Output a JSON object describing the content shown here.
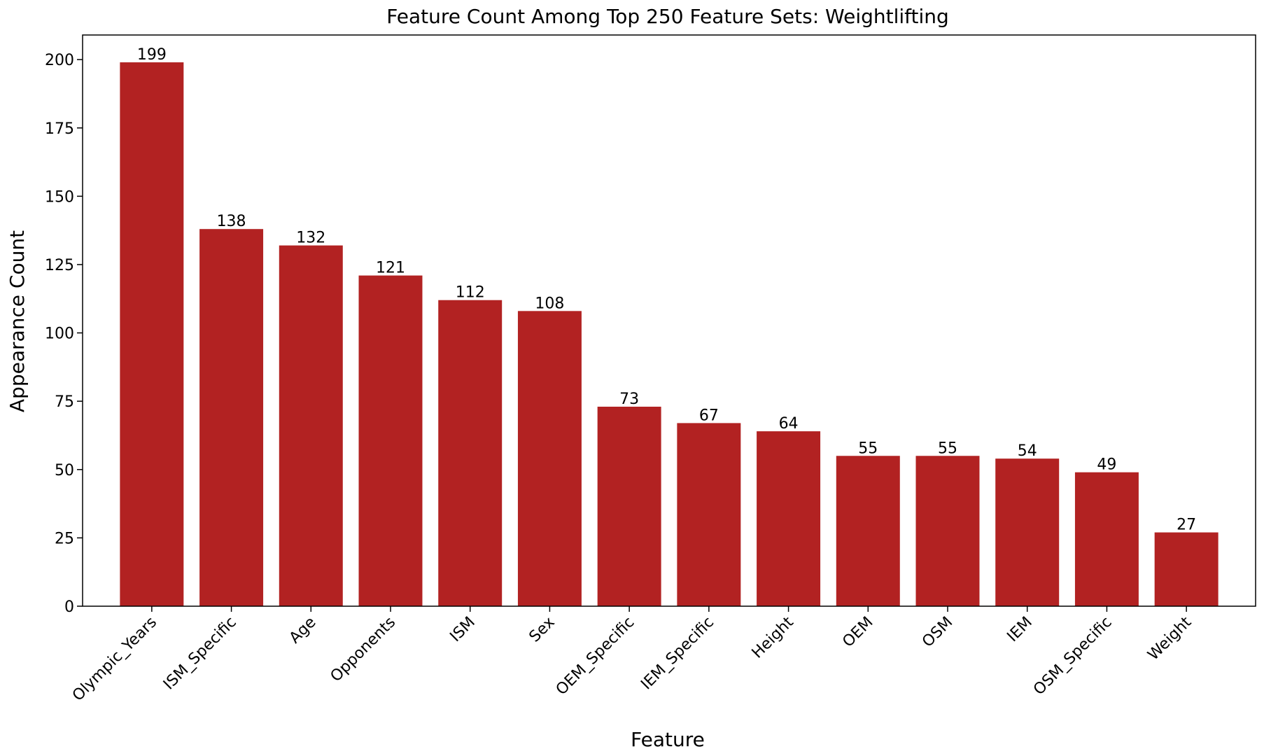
{
  "chart_data": {
    "type": "bar",
    "title": "Feature Count Among Top 250 Feature Sets: Weightlifting",
    "xlabel": "Feature",
    "ylabel": "Appearance Count",
    "categories": [
      "Olympic_Years",
      "ISM_Specific",
      "Age",
      "Opponents",
      "ISM",
      "Sex",
      "OEM_Specific",
      "IEM_Specific",
      "Height",
      "OEM",
      "OSM",
      "IEM",
      "OSM_Specific",
      "Weight"
    ],
    "values": [
      199,
      138,
      132,
      121,
      112,
      108,
      73,
      67,
      64,
      55,
      55,
      54,
      49,
      27
    ],
    "ylim": [
      0,
      209
    ],
    "yticks": [
      0,
      25,
      50,
      75,
      100,
      125,
      150,
      175,
      200
    ],
    "grid": false,
    "legend": "none",
    "bar_color": "#b22222",
    "show_value_labels": true
  }
}
